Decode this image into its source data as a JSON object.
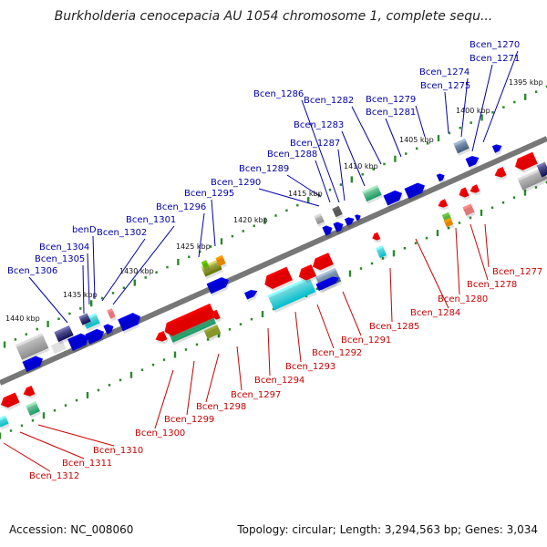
{
  "title": "Burkholderia cenocepacia AU 1054 chromosome 1, complete sequ...",
  "footer": {
    "accession": "Accession: NC_008060",
    "stats": "Topology: circular; Length: 3,294,563 bp; Genes: 3,034"
  },
  "colors": {
    "plus_label": "#0000aa",
    "minus_label": "#cc0000",
    "backbone": "#777777",
    "tick": "#2b8a2b"
  },
  "kbp_ticks": [
    "1395 kbp",
    "1400 kbp",
    "1405 kbp",
    "1410 kbp",
    "1415 kbp",
    "1420 kbp",
    "1425 kbp",
    "1430 kbp",
    "1435 kbp",
    "1440 kbp"
  ],
  "plus_labels": [
    "Bcen_1270",
    "Bcen_1271",
    "Bcen_1274",
    "Bcen_1275",
    "Bcen_1279",
    "Bcen_1281",
    "Bcen_1282",
    "Bcen_1286",
    "Bcen_1283",
    "Bcen_1287",
    "Bcen_1288",
    "Bcen_1289",
    "Bcen_1290",
    "Bcen_1295",
    "Bcen_1296",
    "Bcen_1301",
    "benD",
    "Bcen_1302",
    "Bcen_1304",
    "Bcen_1305",
    "Bcen_1306"
  ],
  "minus_labels": [
    "Bcen_1277",
    "Bcen_1278",
    "Bcen_1280",
    "Bcen_1284",
    "Bcen_1285",
    "Bcen_1291",
    "Bcen_1292",
    "Bcen_1293",
    "Bcen_1294",
    "Bcen_1297",
    "Bcen_1298",
    "Bcen_1299",
    "Bcen_1300",
    "Bcen_1310",
    "Bcen_1311",
    "Bcen_1312"
  ]
}
